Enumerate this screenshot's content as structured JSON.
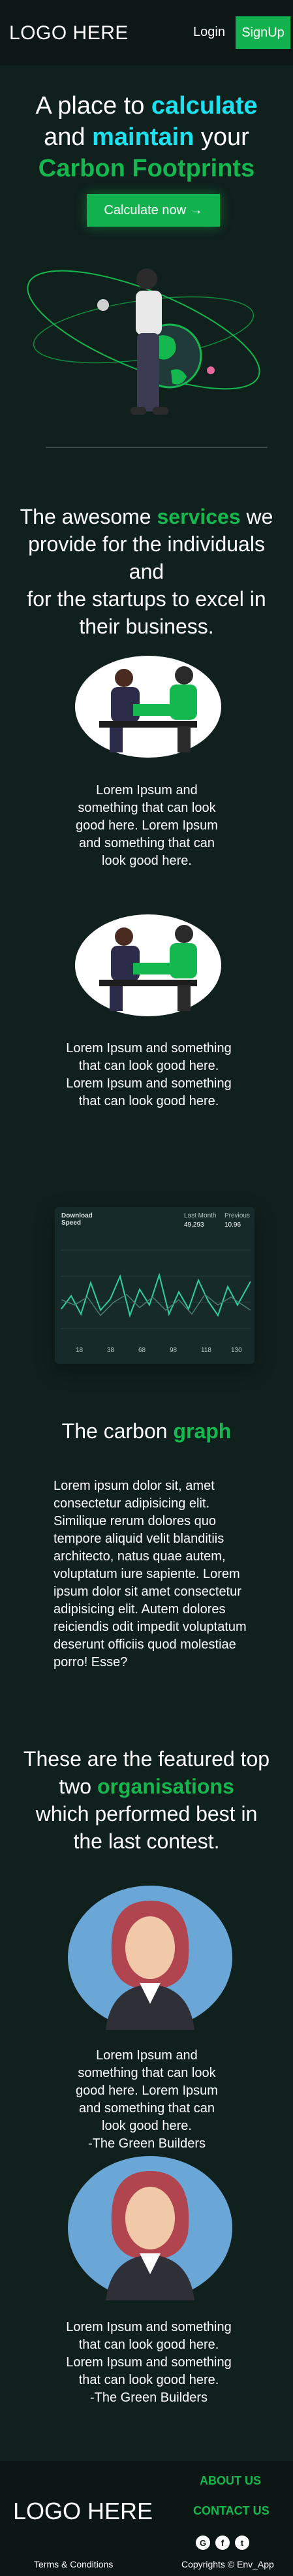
{
  "nav": {
    "logo": "LOGO HERE",
    "login": "Login",
    "signup": "SignUp"
  },
  "hero": {
    "line1_pre": "A place to ",
    "line1_hl": "calculate",
    "line2_hl": "maintain",
    "line2_post": " your",
    "line3_hl": "Carbon Footprints",
    "line2_pre": "and ",
    "cta": "Calculate now →"
  },
  "services": {
    "title_pre": "The awesome ",
    "title_hl": "services",
    "title_post": " we provide for the individuals and",
    "title_line2": "for the startups to excel in their business.",
    "items": [
      {
        "text": "Lorem Ipsum and something that can look good here. Lorem Ipsum and something that can look good here."
      },
      {
        "text": "Lorem Ipsum and something that can look good here. Lorem Ipsum and something that can look good here."
      }
    ]
  },
  "dashboard": {
    "title": "Download Speed",
    "legend_a": "Last Month",
    "legend_b": "Previous",
    "value_a": "49,293",
    "value_b": "10.96",
    "axis": [
      "18",
      "38",
      "68",
      "98",
      "118",
      "130"
    ]
  },
  "graph": {
    "title_pre": "The carbon ",
    "title_hl": "graph",
    "text": "Lorem ipsum dolor sit, amet consectetur adipisicing elit. Similique rerum dolores quo tempore aliquid velit blanditiis architecto, natus quae autem, voluptatum iure sapiente. Lorem ipsum dolor sit amet consectetur adipisicing elit. Autem dolores reiciendis odit impedit voluptatum deserunt officiis quod molestiae porro! Esse?"
  },
  "orgs": {
    "title_line1": "These are the featured top",
    "title_pre": "two ",
    "title_hl": "organisations",
    "title_line3": "which performed best in",
    "title_line4": "the last contest.",
    "items": [
      {
        "text": "Lorem Ipsum and something that can look good here. Lorem Ipsum and something that can look good here.",
        "author": "-The Green Builders"
      },
      {
        "text": "Lorem Ipsum and something that can look good here. Lorem Ipsum and something that can look good here.",
        "author": "-The Green Builders"
      }
    ]
  },
  "footer": {
    "logo": "LOGO HERE",
    "about": "ABOUT US",
    "contact": "CONTACT US",
    "terms": "Terms & Conditions",
    "copyright": "Copyrights © Env_App",
    "socials": [
      "G",
      "f",
      "t"
    ]
  },
  "colors": {
    "accent_green": "#14b84f",
    "accent_cyan": "#1de0f0",
    "background": "#10201d"
  }
}
